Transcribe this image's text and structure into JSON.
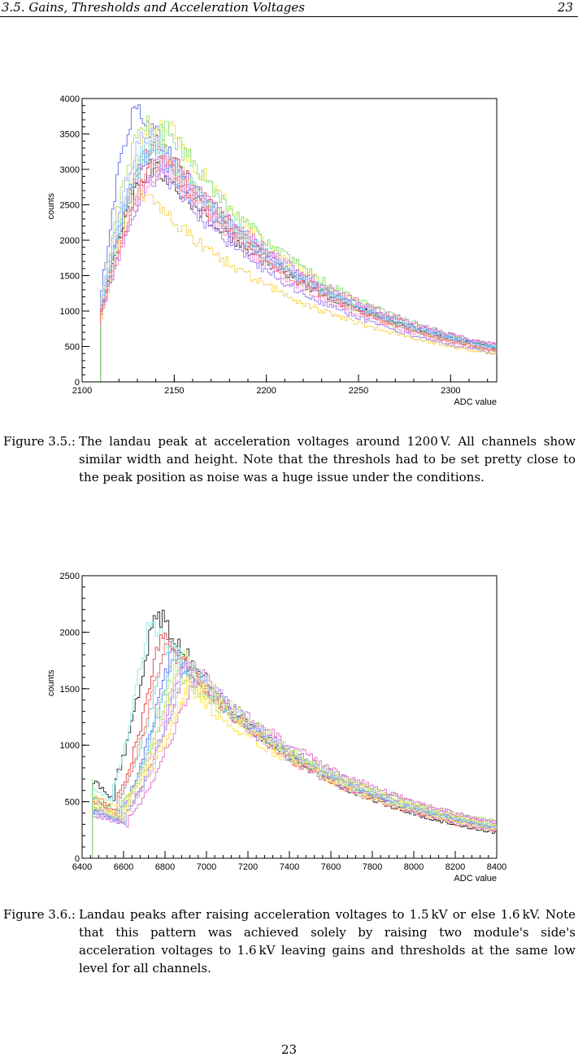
{
  "header": {
    "section": "3.5.  Gains, Thresholds and Acceleration Voltages",
    "page": "23"
  },
  "figures": [
    {
      "label": "Figure 3.5.:",
      "caption": "The landau peak at acceleration voltages around 1200 V. All channels show similar width and height. Note that the threshols had to be set pretty close to the peak position as noise was a huge issue under the conditions.",
      "chart_data": {
        "type": "line",
        "xlabel": "ADC value",
        "ylabel": "counts",
        "xlim": [
          2100,
          2325
        ],
        "ylim": [
          0,
          4000
        ],
        "xticks": [
          2100,
          2150,
          2200,
          2250,
          2300
        ],
        "yticks": [
          0,
          500,
          1000,
          1500,
          2000,
          2500,
          3000,
          3500,
          4000
        ],
        "threshold": 2110,
        "curve_model": "landau-like rise then exponential decay",
        "series_colors": [
          "#5b6cf0",
          "#ffe133",
          "#7de07d",
          "#e83c3c",
          "#c25bd6",
          "#333333",
          "#8ad8e8",
          "#ff8fd0",
          "#5fd0c0",
          "#a6e05c",
          "#9b7bf0",
          "#f5d04a",
          "#66aaff",
          "#e06cc8",
          "#b0b0ff",
          "#ff7070",
          "#b8f070",
          "#ffee66"
        ],
        "series": [
          {
            "peak_x": 2131,
            "peak_y": 3850,
            "tail_y": 420
          },
          {
            "peak_x": 2145,
            "peak_y": 3700,
            "tail_y": 430
          },
          {
            "peak_x": 2147,
            "peak_y": 3550,
            "tail_y": 460
          },
          {
            "peak_x": 2143,
            "peak_y": 3350,
            "tail_y": 400
          },
          {
            "peak_x": 2140,
            "peak_y": 3200,
            "tail_y": 470
          },
          {
            "peak_x": 2141,
            "peak_y": 3050,
            "tail_y": 440
          },
          {
            "peak_x": 2138,
            "peak_y": 3450,
            "tail_y": 450
          },
          {
            "peak_x": 2146,
            "peak_y": 3000,
            "tail_y": 380
          },
          {
            "peak_x": 2142,
            "peak_y": 3300,
            "tail_y": 420
          },
          {
            "peak_x": 2136,
            "peak_y": 3600,
            "tail_y": 390
          },
          {
            "peak_x": 2144,
            "peak_y": 2900,
            "tail_y": 360
          },
          {
            "peak_x": 2134,
            "peak_y": 2650,
            "tail_y": 350
          },
          {
            "peak_x": 2139,
            "peak_y": 3250,
            "tail_y": 440
          },
          {
            "peak_x": 2148,
            "peak_y": 3150,
            "tail_y": 480
          },
          {
            "peak_x": 2137,
            "peak_y": 3500,
            "tail_y": 410
          },
          {
            "peak_x": 2145,
            "peak_y": 3100,
            "tail_y": 400
          }
        ]
      }
    },
    {
      "label": "Figure 3.6.:",
      "caption": "Landau peaks after raising acceleration voltages to 1.5 kV or else 1.6 kV. Note that this pattern was achieved solely by raising two module's side's acceleration voltages to 1.6 kV leaving gains and thresholds at the same low level for all channels.",
      "chart_data": {
        "type": "line",
        "xlabel": "ADC value",
        "ylabel": "counts",
        "xlim": [
          6400,
          8400
        ],
        "ylim": [
          0,
          2500
        ],
        "xticks": [
          6400,
          6600,
          6800,
          7000,
          7200,
          7400,
          7600,
          7800,
          8000,
          8200,
          8400
        ],
        "yticks": [
          0,
          500,
          1000,
          1500,
          2000,
          2500
        ],
        "threshold": 6450,
        "curve_model": "pedestal then landau-like rise and exponential decay",
        "series_colors": [
          "#222222",
          "#8ae8e8",
          "#e83c3c",
          "#ffe133",
          "#7de07d",
          "#5b6cf0",
          "#c25bd6",
          "#ff8fd0",
          "#a6e05c",
          "#66aaff",
          "#f5d04a",
          "#9b7bf0",
          "#5fd0c0",
          "#e06cc8",
          "#b8f070",
          "#ff7070",
          "#b0b0ff",
          "#ffee66"
        ],
        "series": [
          {
            "peak_x": 6750,
            "peak_y": 2230,
            "base_y": 700,
            "tail_y": 200
          },
          {
            "peak_x": 6720,
            "peak_y": 2150,
            "base_y": 650,
            "tail_y": 220
          },
          {
            "peak_x": 6780,
            "peak_y": 1980,
            "base_y": 560,
            "tail_y": 230
          },
          {
            "peak_x": 6880,
            "peak_y": 1550,
            "base_y": 520,
            "tail_y": 260
          },
          {
            "peak_x": 6850,
            "peak_y": 1820,
            "base_y": 480,
            "tail_y": 250
          },
          {
            "peak_x": 6830,
            "peak_y": 1850,
            "base_y": 440,
            "tail_y": 240
          },
          {
            "peak_x": 6900,
            "peak_y": 1700,
            "base_y": 420,
            "tail_y": 280
          },
          {
            "peak_x": 6870,
            "peak_y": 1760,
            "base_y": 460,
            "tail_y": 230
          },
          {
            "peak_x": 6860,
            "peak_y": 1650,
            "base_y": 500,
            "tail_y": 300
          },
          {
            "peak_x": 6840,
            "peak_y": 1780,
            "base_y": 430,
            "tail_y": 250
          },
          {
            "peak_x": 6920,
            "peak_y": 1600,
            "base_y": 470,
            "tail_y": 270
          },
          {
            "peak_x": 6890,
            "peak_y": 1720,
            "base_y": 410,
            "tail_y": 220
          },
          {
            "peak_x": 6810,
            "peak_y": 1900,
            "base_y": 540,
            "tail_y": 240
          },
          {
            "peak_x": 6950,
            "peak_y": 1680,
            "base_y": 380,
            "tail_y": 290
          },
          {
            "peak_x": 6870,
            "peak_y": 1830,
            "base_y": 450,
            "tail_y": 260
          },
          {
            "peak_x": 6800,
            "peak_y": 1950,
            "base_y": 520,
            "tail_y": 210
          },
          {
            "peak_x": 6910,
            "peak_y": 1750,
            "base_y": 400,
            "tail_y": 250
          },
          {
            "peak_x": 6930,
            "peak_y": 1620,
            "base_y": 560,
            "tail_y": 230
          }
        ]
      }
    }
  ],
  "page_number": "23"
}
